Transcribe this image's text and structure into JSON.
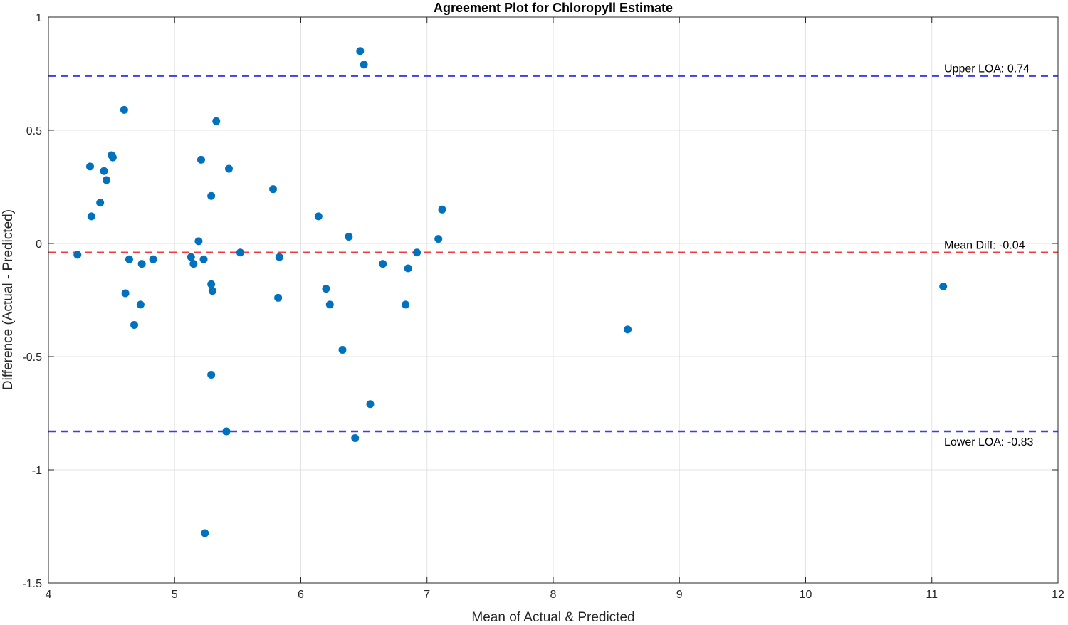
{
  "chart_data": {
    "type": "scatter",
    "title": "Agreement Plot for Chloropyll Estimate",
    "xlabel": "Mean of Actual & Predicted",
    "ylabel": "Difference (Actual - Predicted)",
    "xlim": [
      4,
      12
    ],
    "ylim": [
      -1.5,
      1
    ],
    "x_ticks": [
      4,
      5,
      6,
      7,
      8,
      9,
      10,
      11,
      12
    ],
    "x_tick_labels": [
      "4",
      "5",
      "6",
      "7",
      "8",
      "9",
      "10",
      "11",
      "12"
    ],
    "y_ticks": [
      1,
      0.5,
      0,
      -0.5,
      -1,
      -1.5
    ],
    "y_tick_labels": [
      "1",
      "0.5",
      "0",
      "-0.5",
      "-1",
      "-1.5"
    ],
    "grid": true,
    "point_color": "#0072bd",
    "reference_lines": [
      {
        "name": "upper-loa",
        "value": 0.74,
        "label": "Upper LOA: 0.74",
        "color": "#3c3cf0",
        "label_position": "above"
      },
      {
        "name": "mean-diff",
        "value": -0.04,
        "label": "Mean Diff: -0.04",
        "color": "#f03c3c",
        "label_position": "above"
      },
      {
        "name": "lower-loa",
        "value": -0.83,
        "label": "Lower LOA: -0.83",
        "color": "#3c3cf0",
        "label_position": "below"
      }
    ],
    "points": [
      {
        "x": 4.23,
        "y": -0.05
      },
      {
        "x": 4.33,
        "y": 0.34
      },
      {
        "x": 4.34,
        "y": 0.12
      },
      {
        "x": 4.41,
        "y": 0.18
      },
      {
        "x": 4.44,
        "y": 0.32
      },
      {
        "x": 4.46,
        "y": 0.28
      },
      {
        "x": 4.5,
        "y": 0.39
      },
      {
        "x": 4.51,
        "y": 0.38
      },
      {
        "x": 4.6,
        "y": 0.59
      },
      {
        "x": 4.61,
        "y": -0.22
      },
      {
        "x": 4.64,
        "y": -0.07
      },
      {
        "x": 4.68,
        "y": -0.36
      },
      {
        "x": 4.73,
        "y": -0.27
      },
      {
        "x": 4.74,
        "y": -0.09
      },
      {
        "x": 4.83,
        "y": -0.07
      },
      {
        "x": 5.13,
        "y": -0.06
      },
      {
        "x": 5.15,
        "y": -0.09
      },
      {
        "x": 5.19,
        "y": 0.01
      },
      {
        "x": 5.21,
        "y": 0.37
      },
      {
        "x": 5.23,
        "y": -0.07
      },
      {
        "x": 5.24,
        "y": -1.28
      },
      {
        "x": 5.29,
        "y": -0.18
      },
      {
        "x": 5.29,
        "y": 0.21
      },
      {
        "x": 5.29,
        "y": -0.58
      },
      {
        "x": 5.3,
        "y": -0.21
      },
      {
        "x": 5.33,
        "y": 0.54
      },
      {
        "x": 5.41,
        "y": -0.83
      },
      {
        "x": 5.43,
        "y": 0.33
      },
      {
        "x": 5.52,
        "y": -0.04
      },
      {
        "x": 5.78,
        "y": 0.24
      },
      {
        "x": 5.82,
        "y": -0.24
      },
      {
        "x": 5.83,
        "y": -0.06
      },
      {
        "x": 6.14,
        "y": 0.12
      },
      {
        "x": 6.2,
        "y": -0.2
      },
      {
        "x": 6.23,
        "y": -0.27
      },
      {
        "x": 6.33,
        "y": -0.47
      },
      {
        "x": 6.38,
        "y": 0.03
      },
      {
        "x": 6.43,
        "y": -0.86
      },
      {
        "x": 6.47,
        "y": 0.85
      },
      {
        "x": 6.5,
        "y": 0.79
      },
      {
        "x": 6.55,
        "y": -0.71
      },
      {
        "x": 6.65,
        "y": -0.09
      },
      {
        "x": 6.83,
        "y": -0.27
      },
      {
        "x": 6.85,
        "y": -0.11
      },
      {
        "x": 6.92,
        "y": -0.04
      },
      {
        "x": 7.09,
        "y": 0.02
      },
      {
        "x": 7.12,
        "y": 0.15
      },
      {
        "x": 8.59,
        "y": -0.38
      },
      {
        "x": 11.09,
        "y": -0.19
      }
    ]
  }
}
